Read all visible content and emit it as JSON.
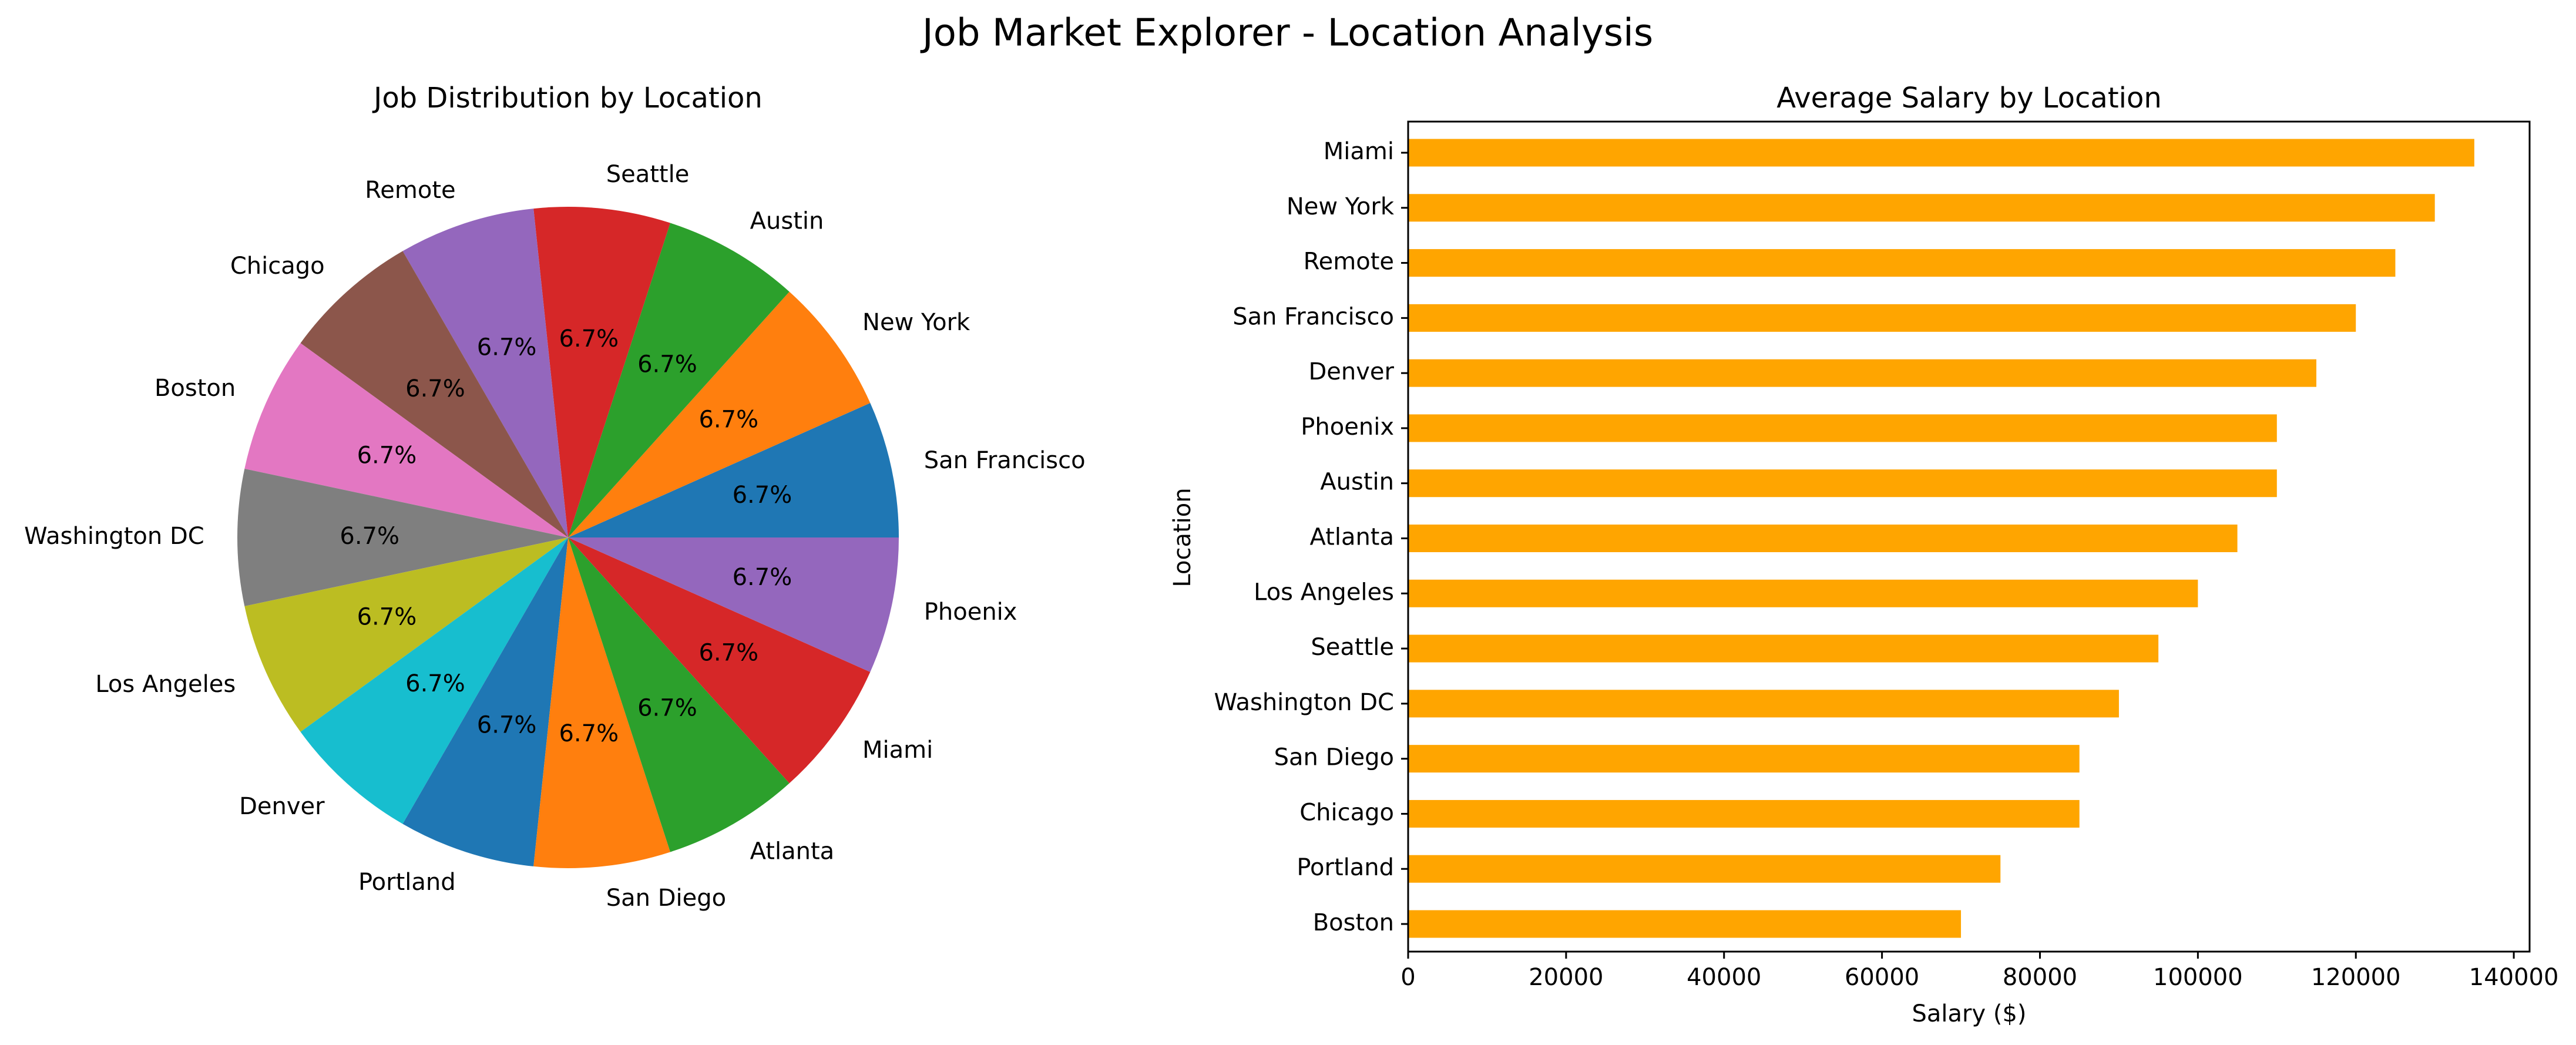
{
  "figure_title": "Job Market Explorer - Location Analysis",
  "chart_data": [
    {
      "type": "pie",
      "title": "Job Distribution by Location",
      "labels": [
        "San Francisco",
        "New York",
        "Austin",
        "Seattle",
        "Remote",
        "Chicago",
        "Boston",
        "Washington DC",
        "Los Angeles",
        "Denver",
        "Portland",
        "San Diego",
        "Atlanta",
        "Miami",
        "Phoenix"
      ],
      "values": [
        1,
        1,
        1,
        1,
        1,
        1,
        1,
        1,
        1,
        1,
        1,
        1,
        1,
        1,
        1
      ],
      "pct_labels": [
        "6.7%",
        "6.7%",
        "6.7%",
        "6.7%",
        "6.7%",
        "6.7%",
        "6.7%",
        "6.7%",
        "6.7%",
        "6.7%",
        "6.7%",
        "6.7%",
        "6.7%",
        "6.7%",
        "6.7%"
      ],
      "colors": [
        "#1f77b4",
        "#ff7f0e",
        "#2ca02c",
        "#d62728",
        "#9467bd",
        "#8c564b",
        "#e377c2",
        "#7f7f7f",
        "#bcbd22",
        "#17becf",
        "#1f77b4",
        "#ff7f0e",
        "#2ca02c",
        "#d62728",
        "#9467bd"
      ],
      "start_angle_deg": 0,
      "direction": "counterclockwise"
    },
    {
      "type": "bar",
      "orientation": "horizontal",
      "title": "Average Salary by Location",
      "xlabel": "Salary ($)",
      "ylabel": "Location",
      "categories": [
        "Miami",
        "New York",
        "Remote",
        "San Francisco",
        "Denver",
        "Phoenix",
        "Austin",
        "Atlanta",
        "Los Angeles",
        "Seattle",
        "Washington DC",
        "San Diego",
        "Chicago",
        "Portland",
        "Boston"
      ],
      "values": [
        135000,
        130000,
        125000,
        120000,
        115000,
        110000,
        110000,
        105000,
        100000,
        95000,
        90000,
        85000,
        85000,
        75000,
        70000
      ],
      "xlim": [
        0,
        142000
      ],
      "xticks": [
        0,
        20000,
        40000,
        60000,
        80000,
        100000,
        120000,
        140000
      ],
      "xtick_labels": [
        "0",
        "20000",
        "40000",
        "60000",
        "80000",
        "100000",
        "120000",
        "140000"
      ],
      "bar_color": "#ffa500",
      "grid": false
    }
  ]
}
